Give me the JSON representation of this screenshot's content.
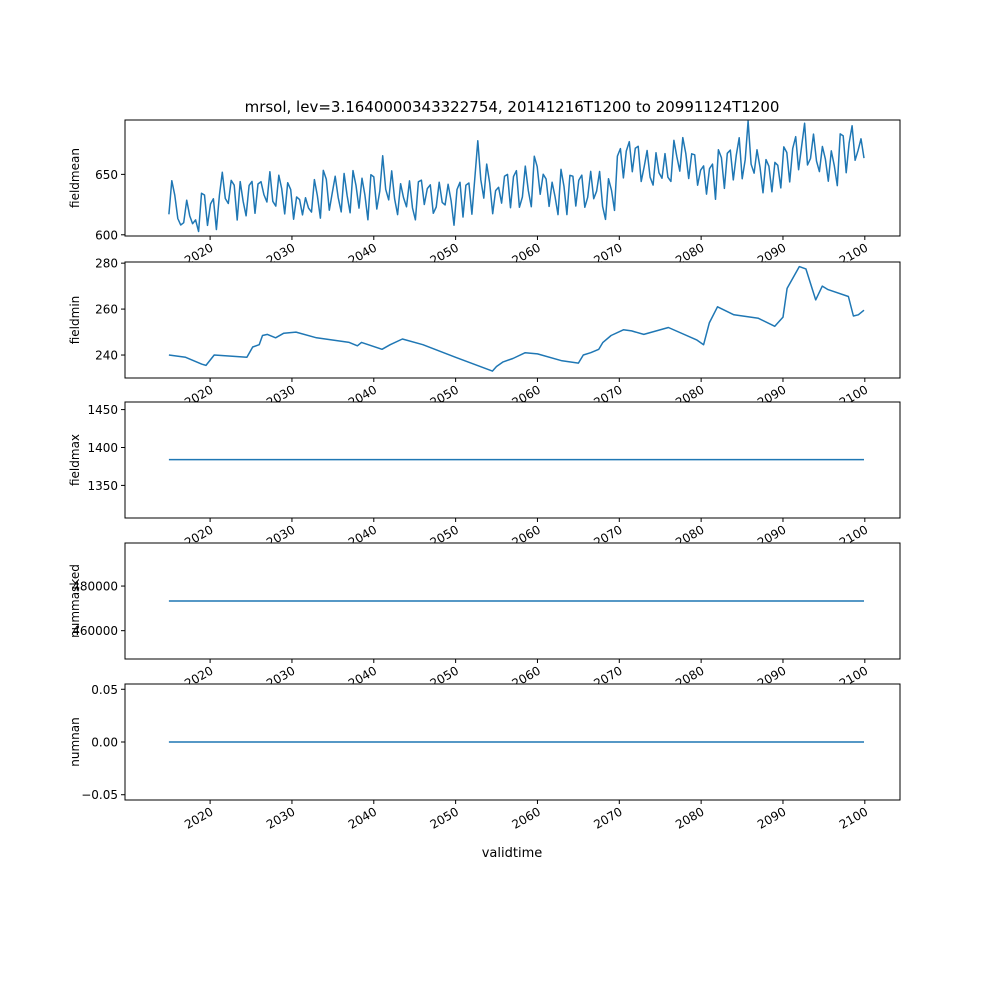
{
  "title": "mrsol, lev=3.1640000343322754, 20141216T1200 to 20991124T1200",
  "xlabel": "validtime",
  "x_ticks": [
    "2020",
    "2030",
    "2040",
    "2050",
    "2060",
    "2070",
    "2080",
    "2090",
    "2100"
  ],
  "x_tick_values": [
    2020,
    2030,
    2040,
    2050,
    2060,
    2070,
    2080,
    2090,
    2100
  ],
  "x_range": [
    2009.6,
    2104.3
  ],
  "line_color": "#1f77b4",
  "chart_data": [
    {
      "type": "line",
      "ylabel": "fieldmean",
      "ylim": [
        599,
        695
      ],
      "y_ticks": [
        "600",
        "650"
      ],
      "y_tick_values": [
        600,
        650
      ],
      "x_start": 2014.96,
      "x_end": 2099.9,
      "values": [
        616.93,
        644.75,
        632.69,
        613.52,
        608.1,
        609.99,
        628.6,
        615.76,
        609.17,
        612.3,
        602.72,
        634.31,
        632.89,
        607.78,
        625.47,
        629.8,
        604.36,
        632.66,
        651.72,
        630.0,
        625.89,
        644.99,
        641.07,
        612.23,
        643.98,
        627.88,
        615.75,
        640.84,
        644.22,
        617.8,
        642.06,
        643.91,
        633.28,
        627.16,
        652.21,
        627.71,
        623.75,
        649.25,
        638.22,
        617.28,
        643.08,
        637.37,
        612.94,
        631.29,
        629.14,
        616.46,
        630.68,
        622.18,
        618.82,
        645.71,
        632.21,
        613.8,
        653.25,
        646.03,
        620.32,
        634.32,
        648.44,
        630.75,
        618.91,
        650.71,
        632.62,
        618.18,
        653.14,
        640.77,
        622.08,
        646.72,
        632.95,
        612.44,
        649.71,
        647.93,
        621.32,
        636.25,
        665.38,
        637.66,
        628.88,
        652.88,
        629.89,
        616.67,
        642.28,
        630.74,
        623.19,
        644.58,
        622.21,
        612.44,
        643.85,
        645.14,
        625.06,
        638.21,
        641.35,
        617.78,
        623.0,
        643.56,
        626.78,
        624.73,
        641.8,
        628.22,
        607.97,
        637.46,
        643.47,
        614.76,
        641.03,
        642.87,
        617.08,
        646.68,
        677.77,
        645.63,
        630.35,
        658.52,
        642.76,
        617.47,
        636.55,
        639.29,
        626.25,
        648.37,
        649.94,
        622.46,
        648.12,
        653.02,
        622.78,
        631.28,
        656.82,
        636.64,
        623.23,
        664.95,
        656.36,
        633.5,
        650.05,
        646.15,
        623.51,
        643.48,
        631.78,
        616.68,
        654.09,
        639.97,
        616.71,
        649.12,
        648.52,
        623.86,
        645.22,
        649.39,
        622.76,
        631.02,
        652.46,
        629.91,
        636.11,
        652.34,
        623.62,
        612.71,
        646.46,
        636.78,
        620.15,
        665.14,
        671.31,
        647.09,
        669.31,
        677.03,
        652.18,
        671.58,
        673.22,
        644.13,
        656.42,
        669.73,
        647.7,
        641.14,
        667.82,
        651.29,
        646.84,
        667.18,
        647.7,
        644.2,
        678.09,
        664.77,
        652.7,
        680.46,
        667.24,
        646.62,
        667.05,
        666.18,
        641.07,
        653.44,
        657.04,
        633.71,
        654.67,
        658.49,
        629.4,
        670.34,
        663.86,
        638.37,
        667.43,
        670.07,
        645.41,
        665.94,
        680.25,
        646.38,
        662.11,
        694.06,
        658.45,
        650.98,
        670.3,
        655.93,
        634.75,
        662.24,
        656.76,
        635.58,
        659.91,
        657.51,
        638.78,
        672.74,
        668.09,
        643.8,
        671.3,
        681.21,
        653.86,
        673.04,
        692.31,
        657.75,
        663.21,
        683.31,
        660.96,
        652.31,
        673.06,
        662.54,
        644.38,
        669.41,
        657.18,
        640.67,
        683.46,
        681.88,
        651.4,
        675.73,
        690.19,
        661.68,
        669.89,
        679.44,
        663.44
      ]
    },
    {
      "type": "line",
      "ylabel": "fieldmin",
      "ylim": [
        230,
        280.5
      ],
      "y_ticks": [
        "240",
        "260",
        "280"
      ],
      "y_tick_values": [
        240,
        260,
        280
      ],
      "x": [
        2014.96,
        2017.0,
        2019.0,
        2019.5,
        2020.5,
        2024.5,
        2025.2,
        2026.0,
        2026.4,
        2027.0,
        2028.0,
        2029.0,
        2030.5,
        2033.0,
        2037.0,
        2038.0,
        2038.5,
        2041.0,
        2042.0,
        2043.5,
        2046.0,
        2050.0,
        2054.5,
        2055.0,
        2055.8,
        2057.0,
        2058.5,
        2060.0,
        2063.0,
        2065.0,
        2065.6,
        2066.5,
        2067.5,
        2068.0,
        2069.0,
        2070.5,
        2071.5,
        2073.0,
        2076.0,
        2079.5,
        2080.3,
        2081.0,
        2082.0,
        2084.0,
        2087.0,
        2089.0,
        2090.0,
        2090.5,
        2092.0,
        2092.8,
        2094.0,
        2094.8,
        2095.5,
        2098.0,
        2098.6,
        2099.2,
        2099.9
      ],
      "y": [
        240.0,
        239.0,
        236.0,
        235.5,
        240.0,
        239.0,
        243.5,
        244.5,
        248.5,
        249.0,
        247.5,
        249.5,
        250.0,
        247.5,
        245.5,
        244.0,
        245.5,
        242.5,
        244.5,
        247.0,
        244.5,
        239.0,
        233.0,
        235.0,
        237.0,
        238.5,
        241.0,
        240.5,
        237.5,
        236.5,
        240.0,
        241.0,
        242.5,
        245.5,
        248.5,
        251.0,
        250.5,
        249.0,
        252.0,
        246.5,
        244.5,
        254.0,
        261.0,
        257.5,
        256.0,
        252.5,
        256.5,
        269.0,
        278.5,
        277.5,
        264.0,
        270.0,
        268.5,
        265.5,
        257.0,
        257.5,
        259.5
      ]
    },
    {
      "type": "line",
      "ylabel": "fieldmax",
      "ylim": [
        1307,
        1460
      ],
      "y_ticks": [
        "1350",
        "1400",
        "1450"
      ],
      "y_tick_values": [
        1350,
        1400,
        1450
      ],
      "x": [
        2014.96,
        2099.9
      ],
      "y": [
        1384,
        1384
      ]
    },
    {
      "type": "line",
      "ylabel": "nummasked",
      "ylim": [
        447300,
        499300
      ],
      "y_ticks": [
        "460000",
        "480000"
      ],
      "y_tick_values": [
        460000,
        480000
      ],
      "x": [
        2014.96,
        2099.9
      ],
      "y": [
        473300,
        473300
      ]
    },
    {
      "type": "line",
      "ylabel": "numnan",
      "ylim": [
        -0.055,
        0.055
      ],
      "y_ticks": [
        "−0.05",
        "0.00",
        "0.05"
      ],
      "y_tick_values": [
        -0.05,
        0,
        0.05
      ],
      "x": [
        2014.96,
        2099.9
      ],
      "y": [
        0,
        0
      ]
    }
  ]
}
